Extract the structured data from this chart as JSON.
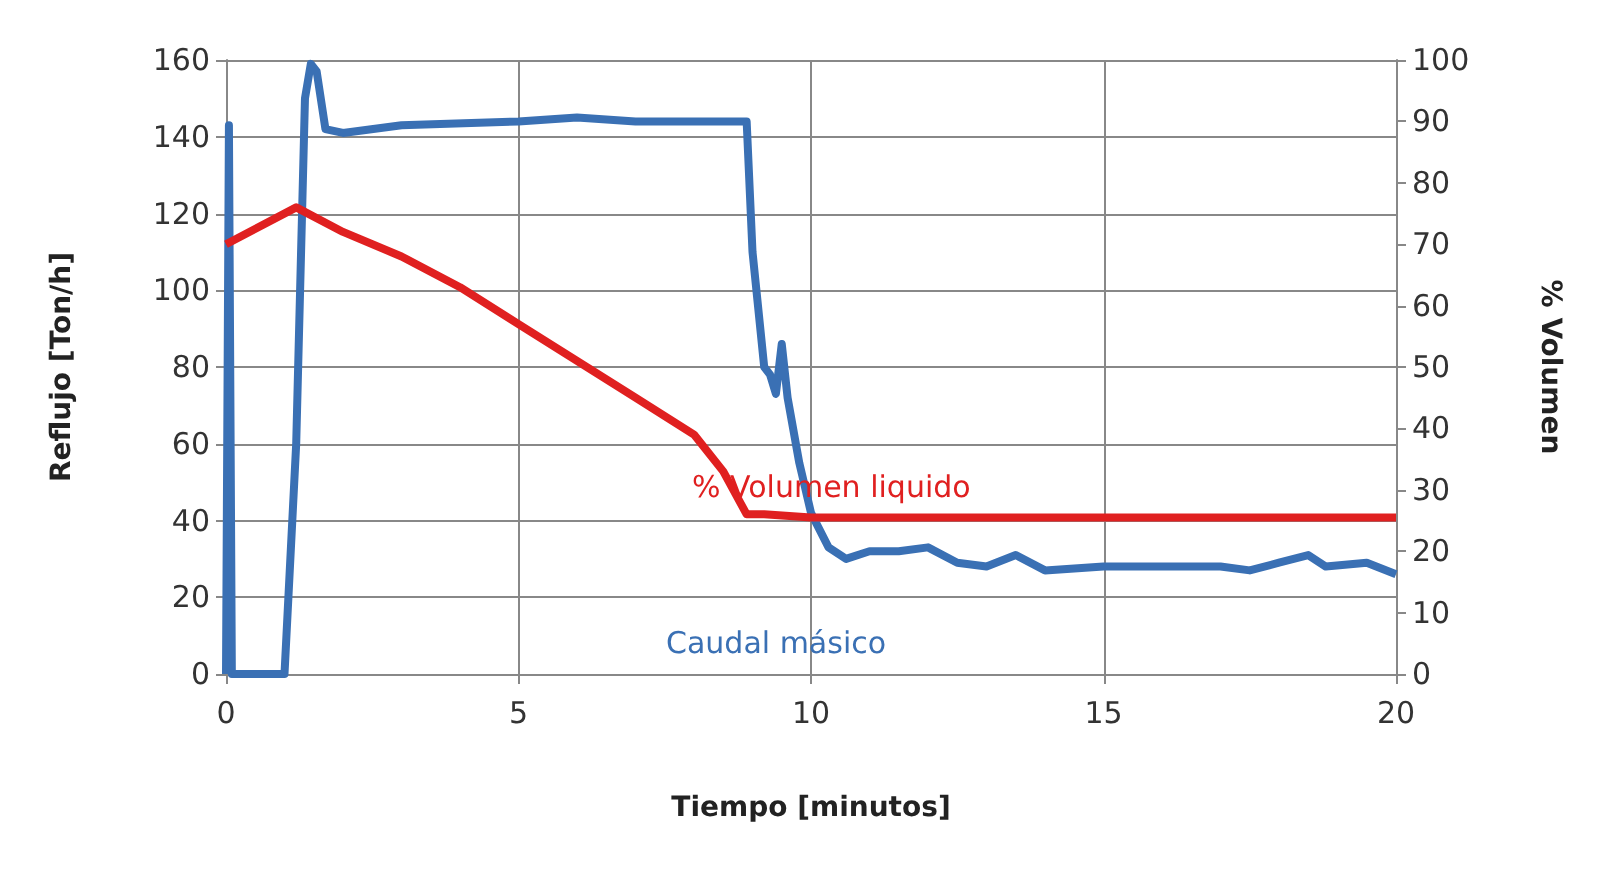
{
  "chart_data": {
    "type": "line",
    "xlabel": "Tiempo [minutos]",
    "ylabel": "Reflujo [Ton/h]",
    "y2label": "% Volumen",
    "xlim": [
      0,
      20
    ],
    "xticks": [
      0,
      5,
      10,
      15,
      20
    ],
    "ylim": [
      0,
      160
    ],
    "yticks": [
      0,
      20,
      40,
      60,
      80,
      100,
      120,
      140,
      160
    ],
    "y2lim": [
      0,
      100
    ],
    "y2ticks": [
      0,
      10,
      20,
      30,
      40,
      50,
      60,
      70,
      80,
      90,
      100
    ],
    "grid": true,
    "legend": false,
    "marker": "none",
    "line_style": "solid",
    "series": [
      {
        "name": "Caudal másico",
        "color": "#3a70b4",
        "x": [
          0,
          0.05,
          0.1,
          1.0,
          1.2,
          1.3,
          1.35,
          1.45,
          1.55,
          1.7,
          2,
          3,
          5,
          6,
          7,
          8.9,
          9.0,
          9.1,
          9.2,
          9.3,
          9.4,
          9.5,
          9.6,
          9.8,
          10,
          10.3,
          10.6,
          11,
          11.5,
          12,
          12.5,
          13,
          13.5,
          14,
          15,
          16,
          17,
          17.5,
          18,
          18.5,
          18.8,
          19.5,
          20
        ],
        "values": [
          0,
          143,
          0,
          0,
          60,
          120,
          150,
          159,
          157,
          142,
          141,
          143,
          144,
          145,
          144,
          144,
          110,
          95,
          80,
          78,
          73,
          86,
          72,
          55,
          42,
          33,
          30,
          32,
          32,
          33,
          29,
          28,
          31,
          27,
          28,
          28,
          28,
          27,
          29,
          31,
          28,
          29,
          26
        ]
      },
      {
        "name": "% Volumen liquido",
        "color": "#e02020",
        "axis": "y2",
        "x": [
          0,
          1.2,
          2,
          3,
          4,
          5,
          6,
          7,
          8,
          8.5,
          8.9,
          9.2,
          10,
          15,
          20
        ],
        "values": [
          70,
          76,
          72,
          68,
          63,
          57,
          51,
          45,
          39,
          33,
          26,
          26,
          25.5,
          25.5,
          25.5
        ]
      }
    ]
  }
}
